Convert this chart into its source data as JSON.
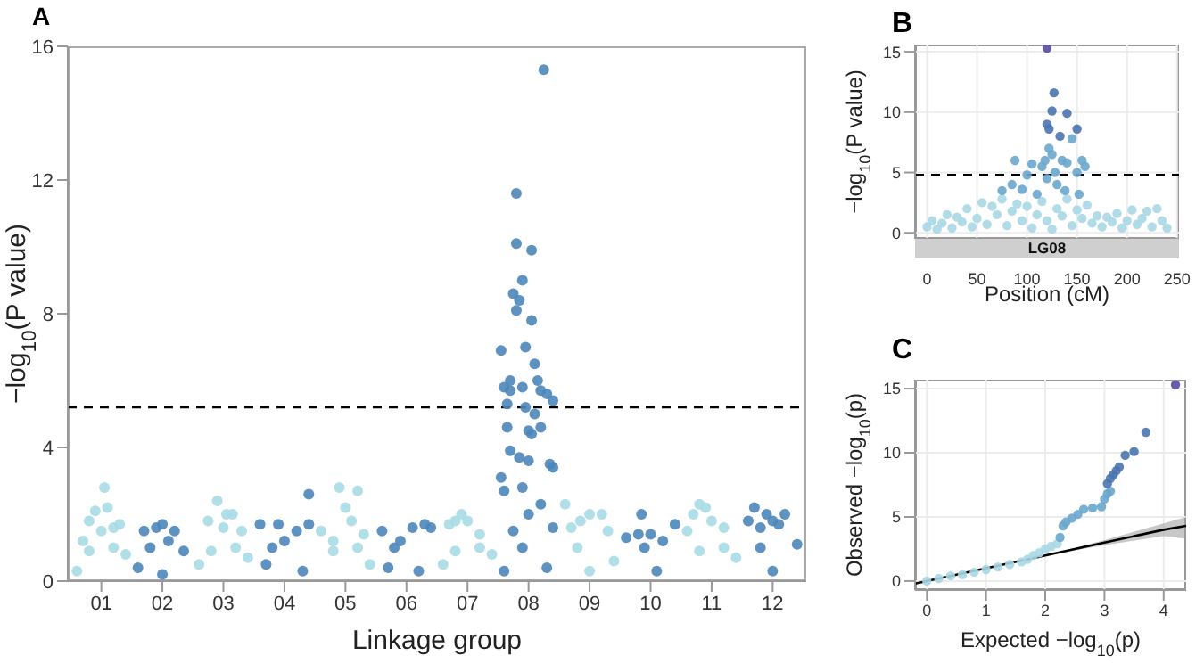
{
  "chart_data": [
    {
      "type": "scatter",
      "title": "A",
      "xlabel": "Linkage group",
      "ylabel": "−log$_{10}$(P value)",
      "marker": "circle",
      "grid": false,
      "xlim": [
        0.45,
        12.55
      ],
      "xticks": [
        {
          "value": 1,
          "label": "01"
        },
        {
          "value": 2,
          "label": "02"
        },
        {
          "value": 3,
          "label": "03"
        },
        {
          "value": 4,
          "label": "04"
        },
        {
          "value": 5,
          "label": "05"
        },
        {
          "value": 6,
          "label": "06"
        },
        {
          "value": 7,
          "label": "07"
        },
        {
          "value": 8,
          "label": "08"
        },
        {
          "value": 9,
          "label": "09"
        },
        {
          "value": 10,
          "label": "10"
        },
        {
          "value": 11,
          "label": "11"
        },
        {
          "value": 12,
          "label": "12"
        }
      ],
      "ylim": [
        0,
        16
      ],
      "yticks": [
        0,
        4,
        8,
        12,
        16
      ],
      "ref_lines": [
        {
          "axis": "y",
          "value": 5.2,
          "color": "#000000",
          "line_style": "dashed"
        }
      ],
      "series": [
        {
          "color": "#a9dbe5",
          "x": [
            0.6,
            0.7,
            0.8,
            0.9,
            1.0,
            1.05,
            1.1,
            1.2,
            1.3,
            1.4,
            0.8,
            1.2,
            2.6,
            2.75,
            2.9,
            3.0,
            3.05,
            3.15,
            3.3,
            3.4,
            2.8,
            3.2,
            4.6,
            4.8,
            4.9,
            5.0,
            5.1,
            5.2,
            5.3,
            5.4,
            4.8,
            5.2,
            6.6,
            6.7,
            6.8,
            6.9,
            7.0,
            7.2,
            7.4,
            6.8,
            7.2,
            8.6,
            8.7,
            8.85,
            9.0,
            9.2,
            9.3,
            9.4,
            9.0,
            8.8,
            10.6,
            10.7,
            10.8,
            10.9,
            11.0,
            11.2,
            11.4,
            10.8,
            11.2
          ],
          "values": [
            0.3,
            1.2,
            1.8,
            2.1,
            1.5,
            2.8,
            2.2,
            1.6,
            1.7,
            0.8,
            0.9,
            1.0,
            0.5,
            1.8,
            2.4,
            1.6,
            2.0,
            2.0,
            1.5,
            0.7,
            0.9,
            1.0,
            1.5,
            1.2,
            2.8,
            2.2,
            1.8,
            2.7,
            1.4,
            0.5,
            0.9,
            1.0,
            0.5,
            1.7,
            1.8,
            2.0,
            1.8,
            1.4,
            0.8,
            0.9,
            1.0,
            2.3,
            1.6,
            1.8,
            2.0,
            2.0,
            1.5,
            0.6,
            0.3,
            1.0,
            1.5,
            2.0,
            2.3,
            2.2,
            1.8,
            1.6,
            0.7,
            0.9,
            1.0
          ]
        },
        {
          "color": "#4c86b9",
          "x": [
            1.6,
            1.7,
            1.9,
            2.0,
            2.1,
            2.2,
            2.35,
            2.0,
            1.8,
            3.6,
            3.7,
            3.9,
            4.0,
            4.2,
            4.4,
            4.4,
            4.3,
            3.8,
            5.6,
            5.7,
            5.9,
            6.1,
            6.3,
            6.4,
            6.2,
            5.8,
            7.55,
            7.6,
            7.6,
            7.55,
            7.65,
            7.65,
            7.7,
            7.7,
            7.75,
            7.8,
            7.8,
            7.8,
            7.85,
            7.85,
            7.9,
            7.9,
            7.9,
            7.95,
            8.0,
            8.0,
            8.05,
            8.05,
            8.1,
            8.15,
            8.2,
            8.2,
            8.25,
            8.3,
            8.35,
            8.4,
            8.4,
            8.4,
            8.1,
            8.0,
            7.75,
            8.2,
            7.9,
            8.3,
            7.6,
            7.95,
            8.05,
            7.7,
            9.6,
            9.8,
            9.85,
            10.0,
            10.2,
            10.4,
            10.1,
            9.9,
            11.6,
            11.7,
            11.8,
            11.9,
            12.0,
            12.1,
            12.2,
            12.4,
            12.0,
            11.8
          ],
          "values": [
            0.4,
            1.5,
            1.6,
            1.7,
            1.2,
            1.5,
            0.9,
            0.2,
            1.0,
            1.7,
            0.5,
            1.7,
            1.2,
            1.5,
            2.6,
            1.7,
            0.3,
            1.0,
            1.5,
            0.4,
            1.2,
            1.6,
            1.7,
            1.6,
            0.3,
            1.0,
            3.1,
            2.7,
            5.8,
            6.9,
            5.3,
            4.6,
            3.9,
            6.0,
            8.6,
            8.1,
            11.6,
            10.1,
            8.4,
            3.7,
            9.0,
            5.8,
            2.8,
            7.0,
            4.5,
            2.0,
            7.8,
            9.9,
            6.5,
            6.0,
            5.7,
            4.6,
            15.3,
            5.6,
            3.5,
            5.4,
            3.4,
            1.6,
            5.0,
            3.6,
            1.5,
            2.3,
            1.0,
            0.4,
            0.3,
            5.2,
            4.4,
            5.7,
            1.3,
            1.4,
            2.0,
            1.4,
            1.2,
            1.7,
            0.3,
            1.0,
            1.8,
            2.2,
            1.6,
            2.0,
            1.8,
            1.7,
            2.0,
            1.1,
            0.3,
            1.0
          ]
        }
      ]
    },
    {
      "type": "scatter",
      "title": "B",
      "xlabel": "Position (cM)",
      "ylabel": "−log$_{10}$(P value)",
      "marker": "circle",
      "grid": true,
      "annotations": [
        "LG08"
      ],
      "xlim": [
        -12,
        252
      ],
      "xticks": [
        0,
        50,
        100,
        150,
        200,
        250
      ],
      "ylim": [
        -0.5,
        15.6
      ],
      "yticks": [
        0,
        5,
        10,
        15
      ],
      "ref_lines": [
        {
          "axis": "y",
          "value": 4.8,
          "color": "#000000",
          "line_style": "dashed"
        }
      ],
      "series": [
        {
          "color": "#a8d8e4",
          "x": [
            0,
            5,
            10,
            15,
            20,
            25,
            30,
            35,
            40,
            45,
            50,
            55,
            60,
            65,
            70,
            75,
            80,
            85,
            90,
            95,
            100,
            105,
            110,
            115,
            120,
            125,
            130,
            135,
            140,
            145,
            150,
            155,
            160,
            165,
            170,
            175,
            180,
            185,
            190,
            195,
            200,
            205,
            210,
            215,
            220,
            225,
            230,
            235,
            240
          ],
          "values": [
            0.5,
            1.0,
            0.3,
            0.8,
            1.5,
            0.4,
            1.3,
            0.9,
            2.0,
            0.5,
            1.2,
            2.5,
            0.7,
            2.2,
            1.5,
            2.8,
            0.6,
            1.8,
            2.4,
            1.0,
            2.2,
            0.4,
            1.5,
            2.6,
            1.0,
            0.3,
            2.0,
            1.4,
            2.8,
            0.6,
            1.9,
            1.2,
            2.3,
            0.8,
            1.4,
            0.5,
            1.3,
            0.9,
            1.6,
            0.4,
            1.0,
            1.9,
            0.7,
            1.2,
            1.8,
            0.5,
            2.0,
            1.0,
            0.4
          ]
        },
        {
          "color": "#6aa6cc",
          "x": [
            75,
            85,
            88,
            95,
            100,
            105,
            110,
            115,
            118,
            120,
            122,
            125,
            128,
            130,
            135,
            138,
            140,
            145,
            150,
            152,
            155,
            158
          ],
          "values": [
            3.5,
            4.0,
            6.0,
            3.6,
            4.8,
            5.7,
            3.2,
            5.5,
            6.0,
            4.5,
            7.0,
            6.5,
            5.0,
            4.0,
            6.0,
            3.5,
            5.8,
            7.8,
            5.0,
            3.2,
            6.0,
            5.5
          ]
        },
        {
          "color": "#4a74b0",
          "x": [
            120,
            122,
            125,
            127,
            133,
            140,
            150
          ],
          "values": [
            9.0,
            8.6,
            10.1,
            11.6,
            8.0,
            9.9,
            8.6
          ]
        },
        {
          "color": "#5a4aa0",
          "x": [
            120
          ],
          "values": [
            15.3
          ]
        }
      ]
    },
    {
      "type": "scatter",
      "title": "C",
      "xlabel": "Expected −log$_{10}$(p)",
      "ylabel": "Observed −log$_{10}$(p)",
      "marker": "circle",
      "grid": true,
      "xlim": [
        -0.2,
        4.38
      ],
      "xticks": [
        0,
        1,
        2,
        3,
        4
      ],
      "ylim": [
        -0.7,
        15.7
      ],
      "yticks": [
        0,
        5,
        10,
        15
      ],
      "series": [
        {
          "type": "line",
          "marker": "none",
          "color": "#000000",
          "x": [
            -0.2,
            2,
            3,
            4,
            4.38
          ],
          "values": [
            -0.2,
            2,
            3,
            4.0,
            4.3
          ],
          "lower": [
            -0.2,
            2,
            2.8,
            3.5,
            3.3
          ],
          "upper": [
            -0.2,
            2,
            3.2,
            4.5,
            5.0
          ]
        },
        {
          "color": "#a8d8e4",
          "x": [
            0,
            0.2,
            0.4,
            0.6,
            0.8,
            1.0,
            1.2,
            1.4,
            1.6,
            1.7,
            1.8,
            1.9,
            2.0,
            2.1,
            2.2
          ],
          "values": [
            0,
            0.2,
            0.4,
            0.5,
            0.7,
            0.9,
            1.1,
            1.3,
            1.5,
            1.7,
            2.0,
            2.2,
            2.5,
            2.7,
            2.9
          ]
        },
        {
          "color": "#6aa6cc",
          "x": [
            2.25,
            2.3,
            2.35,
            2.45,
            2.55,
            2.65,
            2.8,
            2.95,
            3.0,
            3.05,
            3.1
          ],
          "values": [
            3.4,
            4.3,
            4.6,
            4.9,
            5.2,
            5.6,
            5.7,
            5.8,
            6.4,
            6.8,
            7.0
          ]
        },
        {
          "color": "#4a74b0",
          "x": [
            3.05,
            3.1,
            3.15,
            3.2,
            3.25,
            3.35,
            3.5,
            3.7
          ],
          "values": [
            7.6,
            8.0,
            8.3,
            8.6,
            8.9,
            9.8,
            10.1,
            11.6
          ]
        },
        {
          "color": "#5a4aa0",
          "x": [
            4.2
          ],
          "values": [
            15.3
          ]
        }
      ]
    }
  ]
}
